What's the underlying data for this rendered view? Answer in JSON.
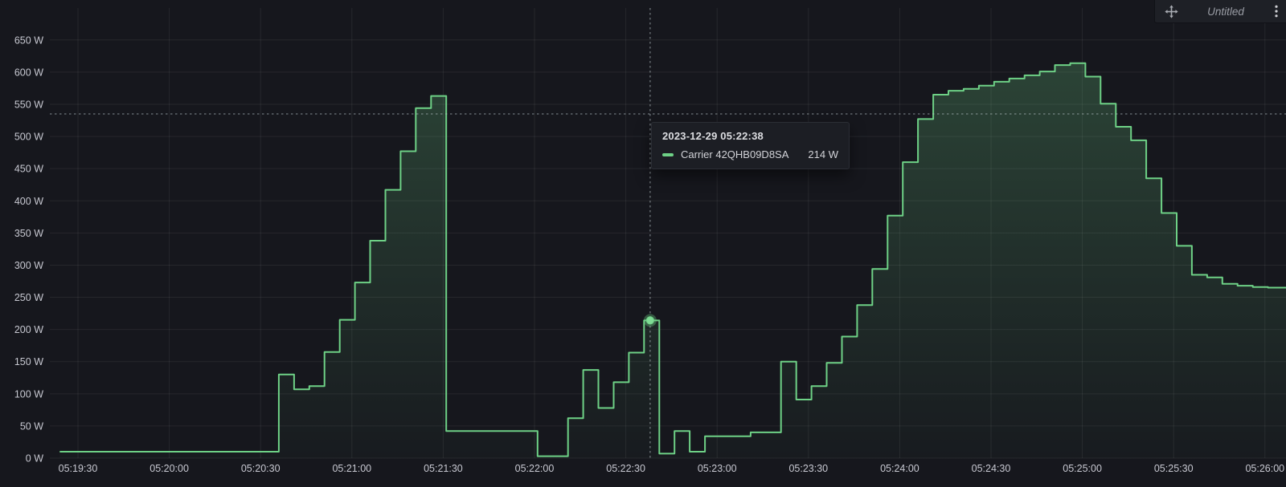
{
  "panel": {
    "title": "Untitled",
    "header_icons": {
      "move": "move-drag-handle",
      "menu": "kebab-vertical-menu"
    }
  },
  "tooltip": {
    "timestamp": "2023-12-29 05:22:38",
    "series_name": "Carrier 42QHB09D8SA",
    "value": "214 W",
    "swatch_color": "#6ed186"
  },
  "crosshair": {
    "time": "05:22:38",
    "point_watts": 214,
    "cursor_watts": 535
  },
  "colors": {
    "background": "#16171d",
    "line": "#6ed186",
    "point_fill": "#7fdc95",
    "grid": "rgba(255,255,255,0.07)",
    "axis_text": "#c7c8d1",
    "crosshair": "rgba(184,194,198,0.55)",
    "tooltip_bg": "#1c1e24",
    "header_bg": "#1e2026"
  },
  "chart_data": {
    "type": "area",
    "line_mode": "step-after",
    "title": "",
    "xlabel": "",
    "ylabel": "",
    "unit": "W",
    "ylim": [
      0,
      700
    ],
    "grid": true,
    "legend_position": "none",
    "y_ticks": {
      "values": [
        0,
        50,
        100,
        150,
        200,
        250,
        300,
        350,
        400,
        450,
        500,
        550,
        600,
        650
      ],
      "labels": [
        "0 W",
        "50 W",
        "100 W",
        "150 W",
        "200 W",
        "250 W",
        "300 W",
        "350 W",
        "400 W",
        "450 W",
        "500 W",
        "550 W",
        "600 W",
        "650 W"
      ]
    },
    "x_ticks": {
      "labels": [
        "05:19:30",
        "05:20:00",
        "05:20:30",
        "05:21:00",
        "05:21:30",
        "05:22:00",
        "05:22:30",
        "05:23:00",
        "05:23:30",
        "05:24:00",
        "05:24:30",
        "05:25:00",
        "05:25:30",
        "05:26:00"
      ]
    },
    "series": [
      {
        "name": "Carrier 42QHB09D8SA",
        "color": "#6ed186",
        "points": [
          [
            "05:19:24",
            10
          ],
          [
            "05:20:36",
            130
          ],
          [
            "05:20:41",
            107
          ],
          [
            "05:20:46",
            112
          ],
          [
            "05:20:51",
            165
          ],
          [
            "05:20:56",
            215
          ],
          [
            "05:21:01",
            273
          ],
          [
            "05:21:06",
            338
          ],
          [
            "05:21:11",
            417
          ],
          [
            "05:21:16",
            477
          ],
          [
            "05:21:21",
            544
          ],
          [
            "05:21:26",
            563
          ],
          [
            "05:21:31",
            42
          ],
          [
            "05:22:01",
            3
          ],
          [
            "05:22:11",
            62
          ],
          [
            "05:22:16",
            137
          ],
          [
            "05:22:21",
            78
          ],
          [
            "05:22:26",
            118
          ],
          [
            "05:22:31",
            164
          ],
          [
            "05:22:36",
            214
          ],
          [
            "05:22:41",
            7
          ],
          [
            "05:22:46",
            42
          ],
          [
            "05:22:51",
            10
          ],
          [
            "05:22:56",
            34
          ],
          [
            "05:23:11",
            40
          ],
          [
            "05:23:21",
            150
          ],
          [
            "05:23:26",
            91
          ],
          [
            "05:23:31",
            112
          ],
          [
            "05:23:36",
            148
          ],
          [
            "05:23:41",
            189
          ],
          [
            "05:23:46",
            238
          ],
          [
            "05:23:51",
            294
          ],
          [
            "05:23:56",
            377
          ],
          [
            "05:24:01",
            460
          ],
          [
            "05:24:06",
            527
          ],
          [
            "05:24:11",
            565
          ],
          [
            "05:24:16",
            571
          ],
          [
            "05:24:21",
            574
          ],
          [
            "05:24:26",
            579
          ],
          [
            "05:24:31",
            585
          ],
          [
            "05:24:36",
            590
          ],
          [
            "05:24:41",
            595
          ],
          [
            "05:24:46",
            601
          ],
          [
            "05:24:51",
            611
          ],
          [
            "05:24:56",
            614
          ],
          [
            "05:25:01",
            593
          ],
          [
            "05:25:06",
            551
          ],
          [
            "05:25:11",
            515
          ],
          [
            "05:25:16",
            494
          ],
          [
            "05:25:21",
            435
          ],
          [
            "05:25:26",
            381
          ],
          [
            "05:25:31",
            330
          ],
          [
            "05:25:36",
            285
          ],
          [
            "05:25:41",
            281
          ],
          [
            "05:25:46",
            271
          ],
          [
            "05:25:51",
            268
          ],
          [
            "05:25:56",
            266
          ],
          [
            "05:26:01",
            265
          ],
          [
            "05:26:07",
            264
          ]
        ]
      }
    ]
  }
}
